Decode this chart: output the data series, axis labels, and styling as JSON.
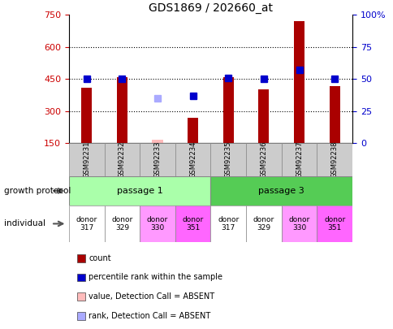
{
  "title": "GDS1869 / 202660_at",
  "samples": [
    "GSM92231",
    "GSM92232",
    "GSM92233",
    "GSM92234",
    "GSM92235",
    "GSM92236",
    "GSM92237",
    "GSM92238"
  ],
  "counts": [
    410,
    460,
    null,
    270,
    460,
    400,
    720,
    415
  ],
  "count_absent": [
    null,
    null,
    165,
    null,
    null,
    null,
    null,
    null
  ],
  "percentile_ranks": [
    50,
    50,
    null,
    37,
    51,
    50,
    57,
    50
  ],
  "rank_absent": [
    null,
    null,
    35,
    null,
    null,
    null,
    null,
    null
  ],
  "ylim_left": [
    150,
    750
  ],
  "ylim_right": [
    0,
    100
  ],
  "y_ticks_left": [
    150,
    300,
    450,
    600,
    750
  ],
  "y_ticks_right": [
    0,
    25,
    50,
    75,
    100
  ],
  "passage_1_label": "passage 1",
  "passage_3_label": "passage 3",
  "passage_1_color": "#aaffaa",
  "passage_3_color": "#55cc55",
  "donors": [
    "donor\n317",
    "donor\n329",
    "donor\n330",
    "donor\n351",
    "donor\n317",
    "donor\n329",
    "donor\n330",
    "donor\n351"
  ],
  "donor_colors": [
    "#ffffff",
    "#ffffff",
    "#ff99ff",
    "#ff66ff",
    "#ffffff",
    "#ffffff",
    "#ff99ff",
    "#ff66ff"
  ],
  "bar_color": "#aa0000",
  "absent_bar_color": "#ffbbbb",
  "rank_color": "#0000cc",
  "rank_absent_color": "#aaaaff",
  "growth_protocol_label": "growth protocol",
  "individual_label": "individual",
  "legend_items": [
    {
      "label": "count",
      "color": "#aa0000"
    },
    {
      "label": "percentile rank within the sample",
      "color": "#0000cc"
    },
    {
      "label": "value, Detection Call = ABSENT",
      "color": "#ffbbbb"
    },
    {
      "label": "rank, Detection Call = ABSENT",
      "color": "#aaaaff"
    }
  ],
  "fig_width": 4.85,
  "fig_height": 4.05,
  "fig_dpi": 100
}
